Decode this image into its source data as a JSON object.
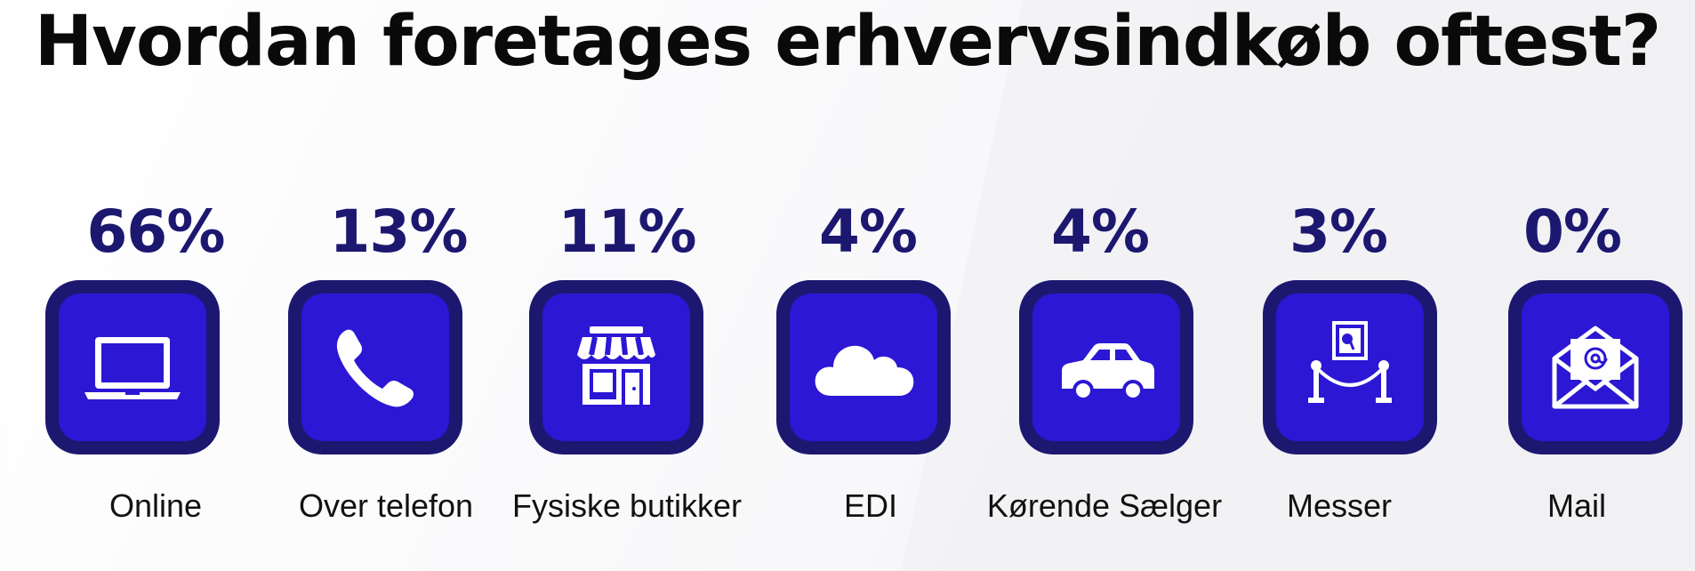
{
  "title": "Hvordan foretages erhvervsindkøb oftest?",
  "colors": {
    "tile_outer": "#1c1870",
    "tile_inner": "#2b17d4",
    "percent_text": "#1c1870"
  },
  "chart_data": {
    "type": "table",
    "title": "Hvordan foretages erhvervsindkøb oftest?",
    "categories": [
      "Online",
      "Over telefon",
      "Fysiske butikker",
      "EDI",
      "Kørende Sælger",
      "Messer",
      "Mail"
    ],
    "values": [
      66,
      13,
      11,
      4,
      4,
      3,
      0
    ],
    "value_labels": [
      "66%",
      "13%",
      "11%",
      "4%",
      "4%",
      "3%",
      "0%"
    ],
    "icons": [
      "laptop-icon",
      "phone-icon",
      "storefront-icon",
      "cloud-icon",
      "car-icon",
      "exhibition-icon",
      "mail-icon"
    ]
  }
}
